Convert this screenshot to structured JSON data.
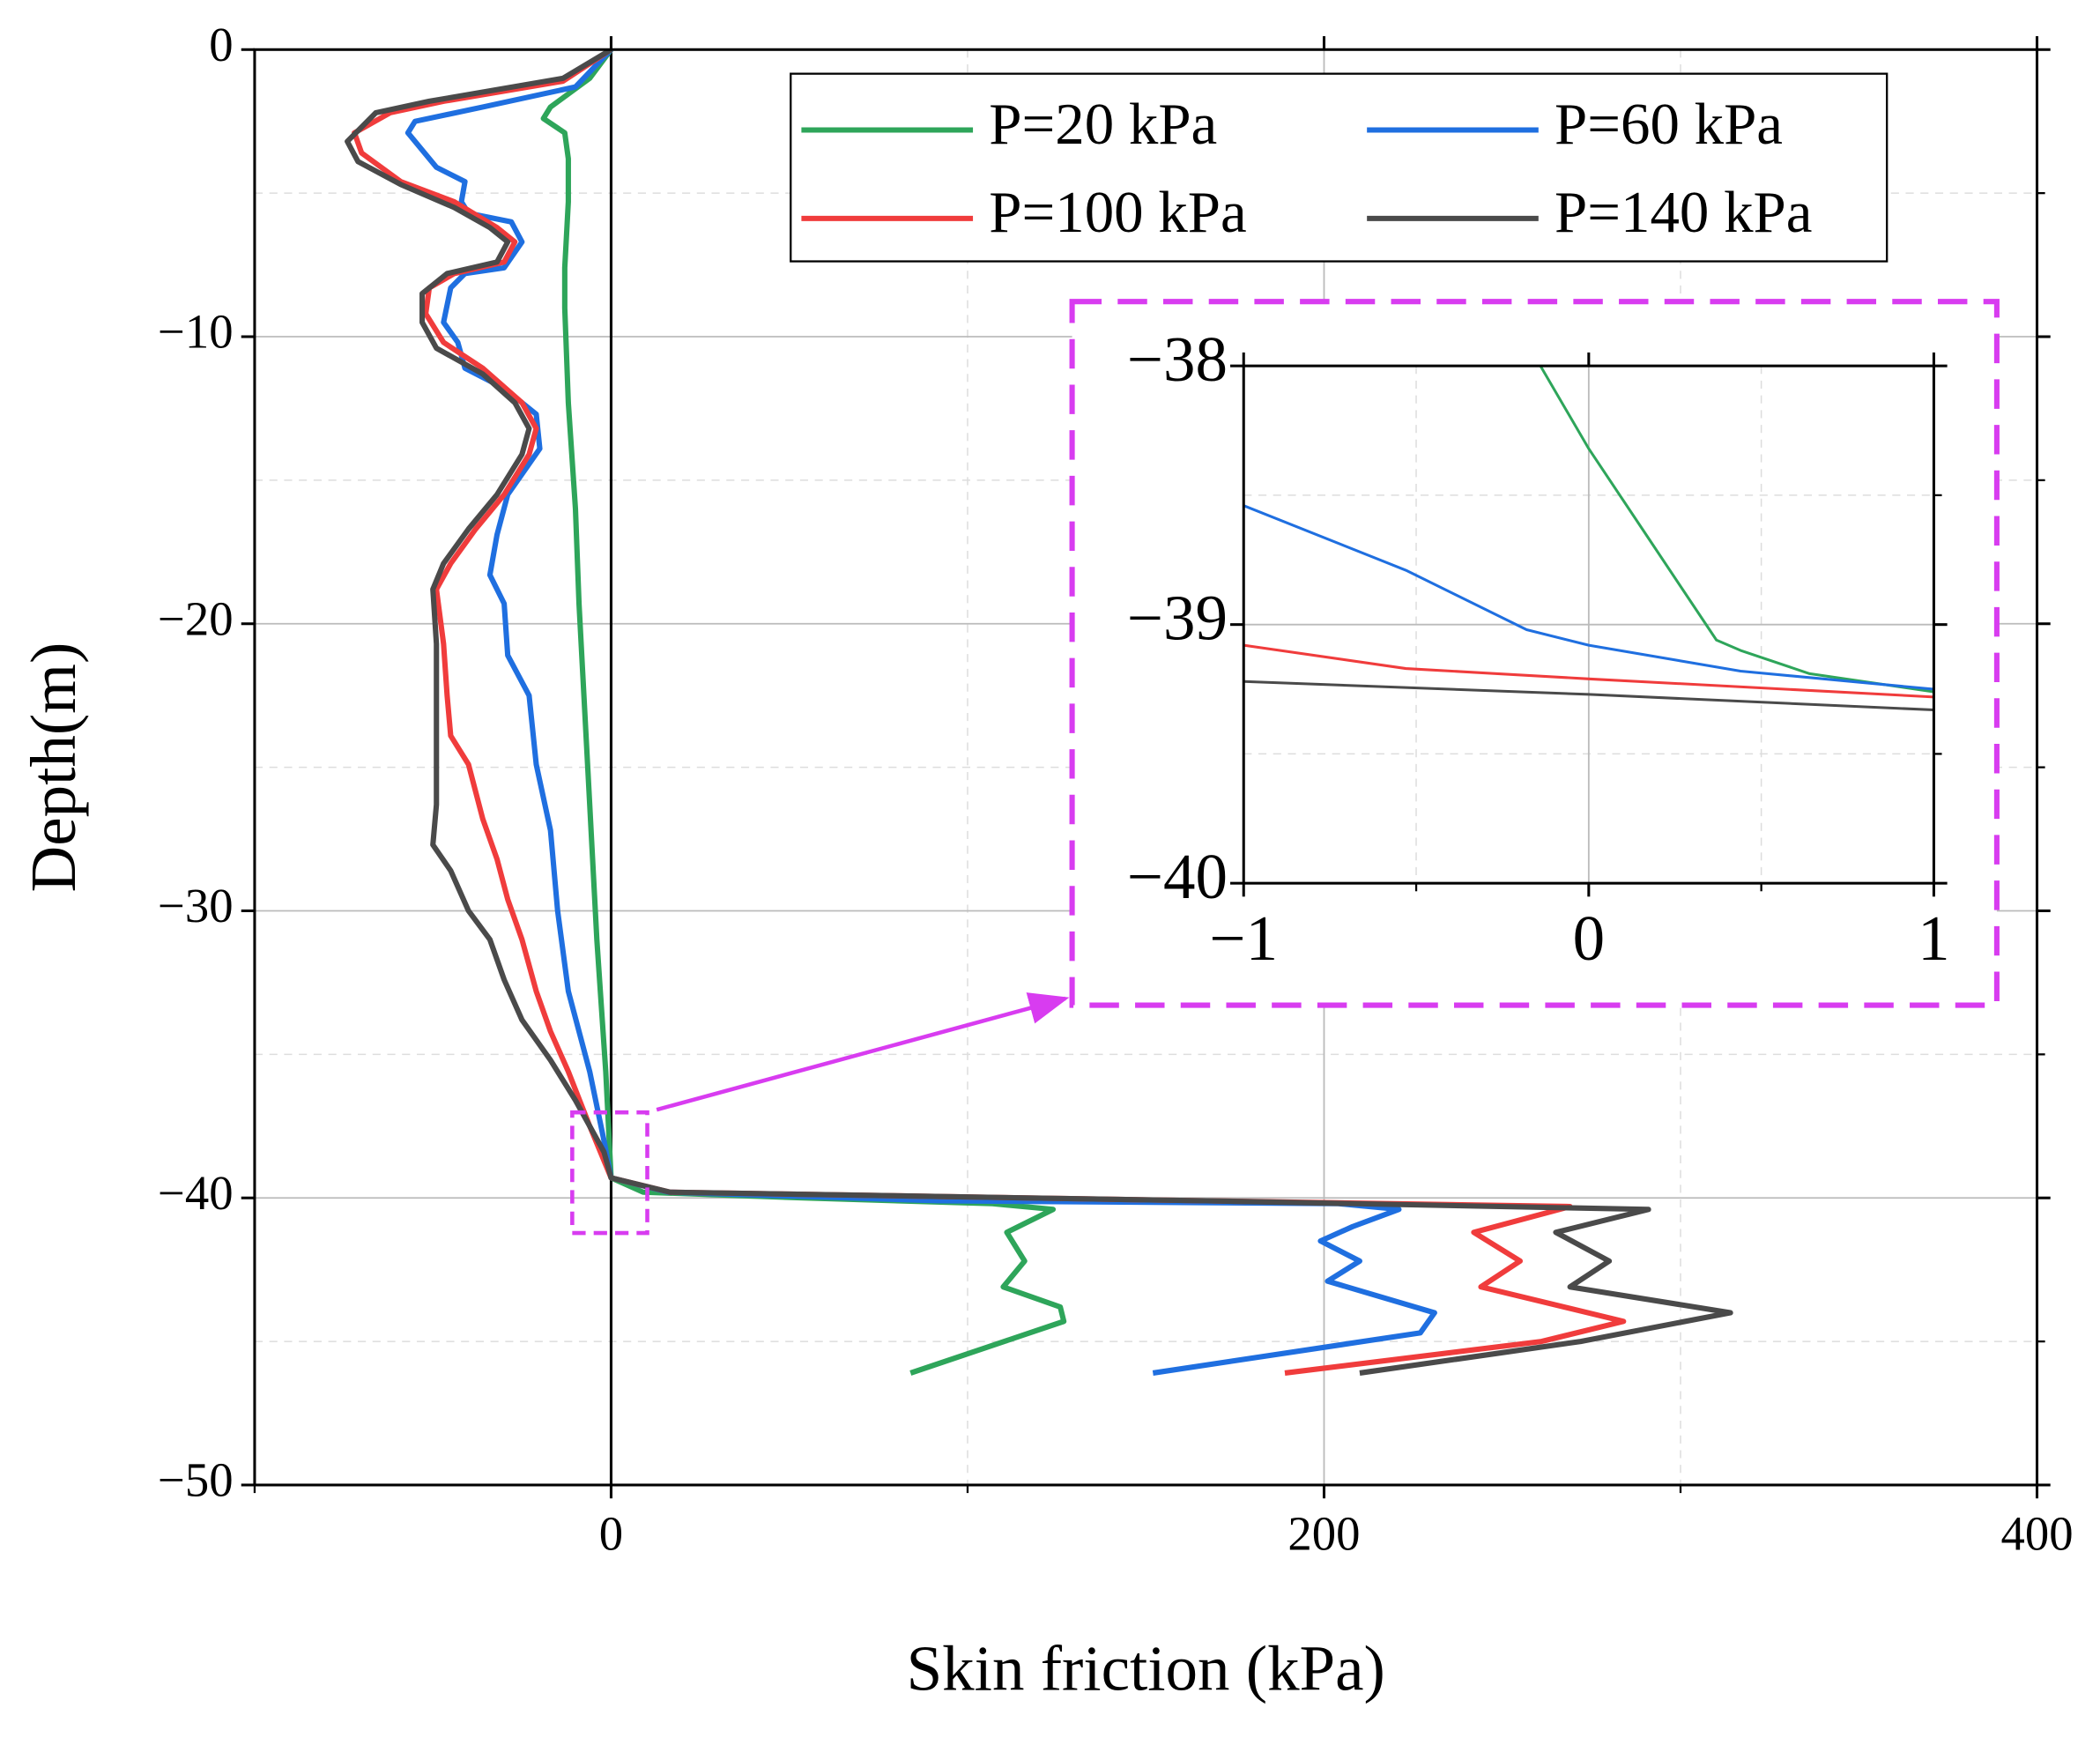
{
  "chart_data": [
    {
      "type": "line",
      "xlabel": "Skin friction (kPa)",
      "ylabel": "Depth(m)",
      "xlim": [
        -100,
        400
      ],
      "xticks": [
        0,
        200,
        400
      ],
      "xminorticks": [
        -100,
        100,
        300
      ],
      "ylim": [
        -50,
        0
      ],
      "yticks": [
        0,
        {
          "value": -10,
          "label": "−10"
        },
        {
          "value": -20,
          "label": "−20"
        },
        {
          "value": -30,
          "label": "−30"
        },
        {
          "value": -40,
          "label": "−40"
        },
        {
          "value": -50,
          "label": "−50"
        }
      ],
      "yminorticks": [
        -5,
        -15,
        -25,
        -35,
        -45
      ],
      "grid": true,
      "legend": "upper right",
      "series": [
        {
          "name": "P=20 kPa",
          "color": "#2ea55a",
          "x": [
            0,
            -6,
            -17,
            -19,
            -13,
            -12,
            -12,
            -13,
            -13,
            -12,
            -10,
            -9,
            -6,
            -4,
            -1.5,
            0,
            9,
            54,
            107,
            124,
            111,
            116,
            110,
            126,
            127,
            84
          ],
          "values": [
            0,
            -1,
            -2,
            -2.4,
            -2.9,
            -3.8,
            -5.3,
            -7.6,
            -9,
            -12.3,
            -16,
            -19.3,
            -26.3,
            -31,
            -35.6,
            -39.3,
            -39.8,
            -40,
            -40.2,
            -40.4,
            -41.2,
            -42.2,
            -43.1,
            -43.8,
            -44.3,
            -46.1
          ]
        },
        {
          "name": "P=60 kPa",
          "color": "#1f6fe0",
          "x": [
            0,
            -10,
            -36,
            -55,
            -57,
            -49,
            -41,
            -42,
            -40,
            -28,
            -25,
            -30,
            -41,
            -45,
            -47,
            -43,
            -41,
            -30,
            -21,
            -20,
            -29,
            -32,
            -34,
            -30,
            -29,
            -23,
            -21,
            -17,
            -15,
            -12,
            -6,
            -2,
            0,
            16,
            92,
            204,
            221,
            208,
            199,
            210,
            201,
            231,
            227,
            152
          ],
          "values": [
            0,
            -1.3,
            -2,
            -2.5,
            -2.9,
            -4.1,
            -4.6,
            -5.3,
            -5.7,
            -6,
            -6.7,
            -7.6,
            -7.8,
            -8.3,
            -9.5,
            -10.2,
            -11.1,
            -11.8,
            -12.7,
            -13.9,
            -15.5,
            -16.9,
            -18.3,
            -19.3,
            -21.1,
            -22.5,
            -24.9,
            -27.2,
            -30,
            -32.8,
            -35.6,
            -38,
            -39.3,
            -39.8,
            -40.1,
            -40.2,
            -40.4,
            -41,
            -41.5,
            -42.2,
            -42.9,
            -44,
            -44.7,
            -46.1
          ]
        },
        {
          "name": "P=100 kPa",
          "color": "#f03c3c",
          "x": [
            0,
            -13.5,
            -47,
            -62,
            -72,
            -70,
            -59,
            -44,
            -32,
            -27,
            -30,
            -44,
            -51,
            -52,
            -47,
            -36,
            -25,
            -21,
            -23,
            -30,
            -38,
            -45,
            -49,
            -47,
            -46,
            -45,
            -40,
            -36,
            -32,
            -29,
            -25,
            -21,
            -17,
            -12,
            -6,
            0,
            16.5,
            167,
            269,
            242,
            255,
            244,
            284,
            261,
            189
          ],
          "values": [
            0,
            -1.1,
            -1.8,
            -2.2,
            -2.9,
            -3.6,
            -4.6,
            -5.3,
            -6.2,
            -6.7,
            -7.4,
            -7.8,
            -8.3,
            -9.2,
            -10.2,
            -11.1,
            -12.3,
            -13.2,
            -14.1,
            -15.5,
            -16.7,
            -17.9,
            -18.8,
            -20.7,
            -22.5,
            -23.9,
            -24.9,
            -26.8,
            -28.2,
            -29.6,
            -31,
            -32.8,
            -34.2,
            -35.6,
            -37.5,
            -39.3,
            -39.8,
            -40.1,
            -40.3,
            -41.2,
            -42.2,
            -43.1,
            -44.3,
            -45,
            -46.1
          ]
        },
        {
          "name": "P=140 kPa",
          "color": "#4a4a4a",
          "x": [
            0,
            -13.5,
            -51,
            -66,
            -74,
            -71,
            -59,
            -44,
            -34,
            -29,
            -32,
            -46,
            -53,
            -53,
            -49,
            -36,
            -27,
            -23,
            -25,
            -32,
            -40,
            -47,
            -50,
            -49,
            -49,
            -49,
            -49,
            -50,
            -45,
            -40,
            -34,
            -30,
            -25,
            -17,
            -10,
            -2,
            0,
            16.5,
            167,
            291,
            265,
            280,
            269,
            314,
            272,
            210
          ],
          "values": [
            0,
            -1,
            -1.8,
            -2.2,
            -3.2,
            -3.9,
            -4.7,
            -5.5,
            -6.2,
            -6.7,
            -7.4,
            -7.8,
            -8.5,
            -9.5,
            -10.4,
            -11.3,
            -12.3,
            -13.2,
            -14.1,
            -15.5,
            -16.7,
            -17.9,
            -18.8,
            -20.7,
            -22.5,
            -24.4,
            -26.3,
            -27.7,
            -28.6,
            -30,
            -31,
            -32.4,
            -33.8,
            -35.2,
            -36.6,
            -38.4,
            -39.3,
            -39.8,
            -40.1,
            -40.4,
            -41.2,
            -42.2,
            -43.1,
            -44,
            -45,
            -46.1
          ]
        }
      ]
    },
    {
      "type": "line",
      "xlim": [
        -1,
        1
      ],
      "xticks": [
        {
          "value": -1,
          "label": "−1"
        },
        0,
        1
      ],
      "xminorticks": [
        -0.5,
        0.5
      ],
      "ylim": [
        -40,
        -38
      ],
      "yticks": [
        {
          "value": -38,
          "label": "−38"
        },
        {
          "value": -39,
          "label": "−39"
        },
        {
          "value": -40,
          "label": "−40"
        }
      ],
      "yminorticks": [
        -38.5,
        -39.5
      ],
      "grid": true,
      "series": [
        {
          "color": "#2ea55a",
          "x": [
            -0.14,
            0,
            0.17,
            0.37,
            0.44,
            0.64,
            1
          ],
          "values": [
            -38,
            -38.32,
            -38.66,
            -39.06,
            -39.1,
            -39.19,
            -39.26
          ]
        },
        {
          "color": "#1f6fe0",
          "x": [
            -1,
            -0.53,
            -0.18,
            0,
            0.44,
            1
          ],
          "values": [
            -38.54,
            -38.79,
            -39.02,
            -39.08,
            -39.18,
            -39.25
          ]
        },
        {
          "color": "#f03c3c",
          "x": [
            -1,
            -0.53,
            0,
            1
          ],
          "values": [
            -39.08,
            -39.17,
            -39.21,
            -39.28
          ]
        },
        {
          "color": "#4a4a4a",
          "x": [
            -1,
            0,
            1
          ],
          "values": [
            -39.22,
            -39.27,
            -39.33
          ]
        }
      ]
    }
  ]
}
